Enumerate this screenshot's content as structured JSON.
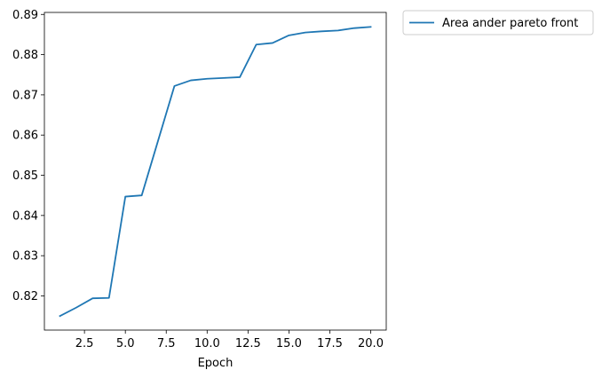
{
  "chart_data": {
    "type": "line",
    "title": "",
    "xlabel": "Epoch",
    "ylabel": "",
    "xlim": [
      0.05,
      20.95
    ],
    "ylim": [
      0.8115,
      0.8905
    ],
    "xticks": [
      2.5,
      5.0,
      7.5,
      10.0,
      12.5,
      15.0,
      17.5,
      20.0
    ],
    "xtick_labels": [
      "2.5",
      "5.0",
      "7.5",
      "10.0",
      "12.5",
      "15.0",
      "17.5",
      "20.0"
    ],
    "yticks": [
      0.82,
      0.83,
      0.84,
      0.85,
      0.86,
      0.87,
      0.88,
      0.89
    ],
    "ytick_labels": [
      "0.82",
      "0.83",
      "0.84",
      "0.85",
      "0.86",
      "0.87",
      "0.88",
      "0.89"
    ],
    "grid": false,
    "legend_position": "outside-top-right",
    "series": [
      {
        "name": "Area ander pareto front",
        "color": "#1f77b4",
        "x": [
          1,
          2,
          3,
          4,
          5,
          6,
          7,
          8,
          9,
          10,
          11,
          12,
          13,
          14,
          15,
          16,
          17,
          18,
          19,
          20
        ],
        "y": [
          0.815,
          0.8171,
          0.8194,
          0.8195,
          0.8447,
          0.845,
          0.8586,
          0.8722,
          0.8736,
          0.874,
          0.8742,
          0.8744,
          0.8825,
          0.8829,
          0.8848,
          0.8855,
          0.8858,
          0.886,
          0.8866,
          0.8869
        ]
      }
    ]
  }
}
